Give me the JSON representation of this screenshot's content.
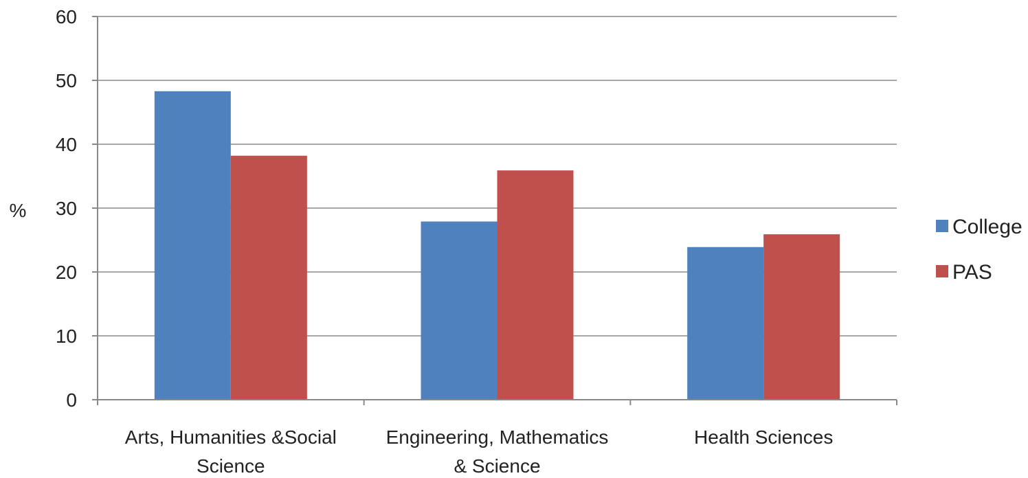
{
  "chart_data": {
    "type": "bar",
    "title": "",
    "xlabel": "",
    "ylabel": "%",
    "ylim": [
      0,
      60
    ],
    "yticks": [
      0,
      10,
      20,
      30,
      40,
      50,
      60
    ],
    "grid": true,
    "legend_position": "right",
    "categories": [
      [
        "Arts, Humanities &Social",
        "Science"
      ],
      [
        "Engineering, Mathematics",
        "& Science"
      ],
      [
        "Health Sciences"
      ]
    ],
    "series": [
      {
        "name": "College",
        "color": "#4F81BD",
        "values": [
          48.3,
          27.9,
          23.9
        ]
      },
      {
        "name": "PAS",
        "color": "#C0504D",
        "values": [
          38.2,
          35.9,
          25.9
        ]
      }
    ]
  }
}
